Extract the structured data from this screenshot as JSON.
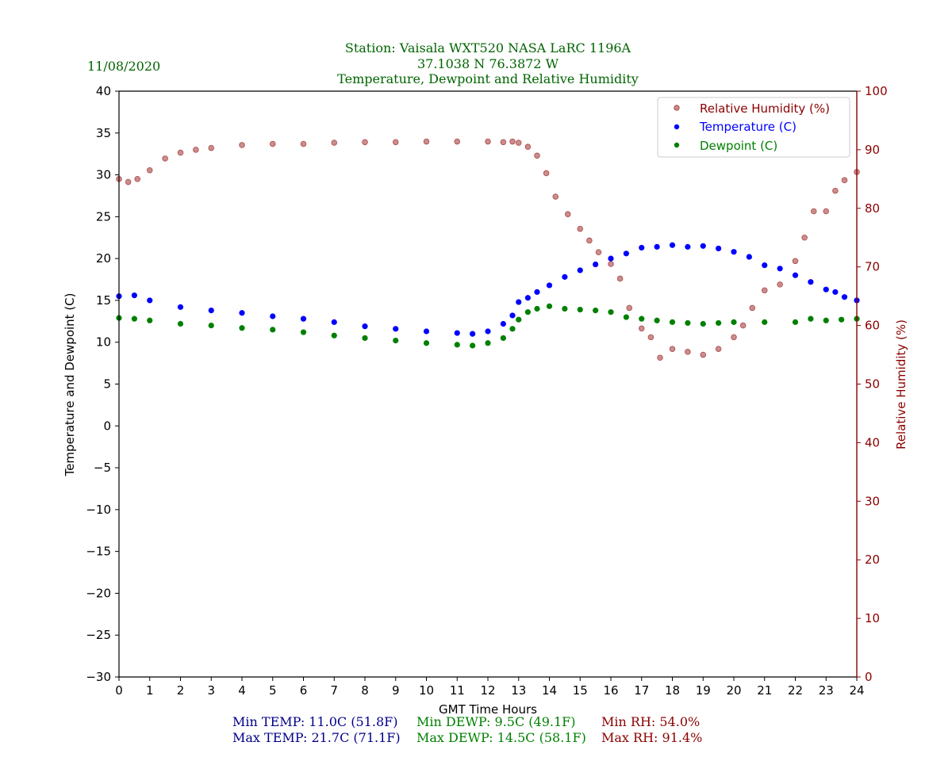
{
  "header": {
    "date": "11/08/2020",
    "title_line1": "Station:  Vaisala WXT520  NASA LaRC 1196A",
    "title_line2": "37.1038 N 76.3872 W",
    "title_line3": "Temperature, Dewpoint and Relative Humidity"
  },
  "colors": {
    "temperature": "#0000ff",
    "dewpoint": "#008000",
    "rh": "#8b0000",
    "title": "#006400",
    "stats_temp": "#00008b"
  },
  "legend": {
    "rh": "Relative Humidity (%)",
    "temp": "Temperature (C)",
    "dewp": "Dewpoint (C)"
  },
  "stats": {
    "min_temp": "Min TEMP: 11.0C (51.8F)",
    "max_temp": "Max TEMP: 21.7C (71.1F)",
    "min_dewp": "Min DEWP: 9.5C (49.1F)",
    "max_dewp": "Max DEWP: 14.5C (58.1F)",
    "min_rh": "Min RH: 54.0%",
    "max_rh": "Max RH: 91.4%"
  },
  "chart_data": {
    "type": "scatter",
    "xlabel": "GMT Time Hours",
    "ylabel": "Temperature and Dewpoint (C)",
    "y2label": "Relative Humidity (%)",
    "xlim": [
      0,
      24
    ],
    "ylim": [
      -30,
      40
    ],
    "y2lim": [
      0,
      100
    ],
    "xticks": [
      0,
      1,
      2,
      3,
      4,
      5,
      6,
      7,
      8,
      9,
      10,
      11,
      12,
      13,
      14,
      15,
      16,
      17,
      18,
      19,
      20,
      21,
      22,
      23,
      24
    ],
    "yticks": [
      -30,
      -25,
      -20,
      -15,
      -10,
      -5,
      0,
      5,
      10,
      15,
      20,
      25,
      30,
      35,
      40
    ],
    "y2ticks": [
      0,
      10,
      20,
      30,
      40,
      50,
      60,
      70,
      80,
      90,
      100
    ],
    "grid": false,
    "legend_position": "top-right",
    "series": [
      {
        "name": "Temperature (C)",
        "axis": "left",
        "x": [
          0,
          0.5,
          1,
          2,
          3,
          4,
          5,
          6,
          7,
          8,
          9,
          10,
          11,
          11.5,
          12,
          12.5,
          12.8,
          13,
          13.3,
          13.6,
          14,
          14.5,
          15,
          15.5,
          16,
          16.5,
          17,
          17.5,
          18,
          18.5,
          19,
          19.5,
          20,
          20.5,
          21,
          21.5,
          22,
          22.5,
          23,
          23.3,
          23.6,
          24
        ],
        "y": [
          15.5,
          15.6,
          15.0,
          14.2,
          13.8,
          13.5,
          13.1,
          12.8,
          12.4,
          11.9,
          11.6,
          11.3,
          11.1,
          11.0,
          11.3,
          12.2,
          13.2,
          14.8,
          15.3,
          16.0,
          16.8,
          17.8,
          18.6,
          19.3,
          20.0,
          20.6,
          21.3,
          21.4,
          21.6,
          21.4,
          21.5,
          21.2,
          20.8,
          20.2,
          19.2,
          18.8,
          18.0,
          17.2,
          16.3,
          16.0,
          15.4,
          15.0
        ]
      },
      {
        "name": "Dewpoint (C)",
        "axis": "left",
        "x": [
          0,
          0.5,
          1,
          2,
          3,
          4,
          5,
          6,
          7,
          8,
          9,
          10,
          11,
          11.5,
          12,
          12.5,
          12.8,
          13,
          13.3,
          13.6,
          14,
          14.5,
          15,
          15.5,
          16,
          16.5,
          17,
          17.5,
          18,
          18.5,
          19,
          19.5,
          20,
          21,
          22,
          22.5,
          23,
          23.5,
          24
        ],
        "y": [
          12.9,
          12.8,
          12.6,
          12.2,
          12.0,
          11.7,
          11.5,
          11.2,
          10.8,
          10.5,
          10.2,
          9.9,
          9.7,
          9.6,
          9.9,
          10.5,
          11.6,
          12.7,
          13.6,
          14.0,
          14.3,
          14.0,
          13.9,
          13.8,
          13.6,
          13.0,
          12.8,
          12.6,
          12.4,
          12.3,
          12.2,
          12.3,
          12.4,
          12.4,
          12.4,
          12.8,
          12.6,
          12.7,
          12.8
        ]
      },
      {
        "name": "Relative Humidity (%)",
        "axis": "right",
        "x": [
          0,
          0.3,
          0.6,
          1,
          1.5,
          2,
          2.5,
          3,
          4,
          5,
          6,
          7,
          8,
          9,
          10,
          11,
          12,
          12.5,
          12.8,
          13,
          13.3,
          13.6,
          13.9,
          14.2,
          14.6,
          15,
          15.3,
          15.6,
          16,
          16.3,
          16.6,
          17,
          17.3,
          17.6,
          18,
          18.5,
          19,
          19.5,
          20,
          20.3,
          20.6,
          21,
          21.5,
          22,
          22.3,
          22.6,
          23,
          23.3,
          23.6,
          24
        ],
        "y": [
          85,
          84.5,
          85,
          86.5,
          88.5,
          89.5,
          90,
          90.3,
          90.8,
          91,
          91,
          91.2,
          91.3,
          91.3,
          91.4,
          91.4,
          91.4,
          91.3,
          91.4,
          91.2,
          90.5,
          89,
          86,
          82,
          79,
          76.5,
          74.5,
          72.5,
          70.5,
          68,
          63,
          59.5,
          58,
          54.5,
          56,
          55.5,
          55,
          56,
          58,
          60,
          63,
          66,
          67,
          71,
          75,
          79.5,
          79.5,
          83,
          84.8,
          86.2
        ]
      }
    ]
  }
}
